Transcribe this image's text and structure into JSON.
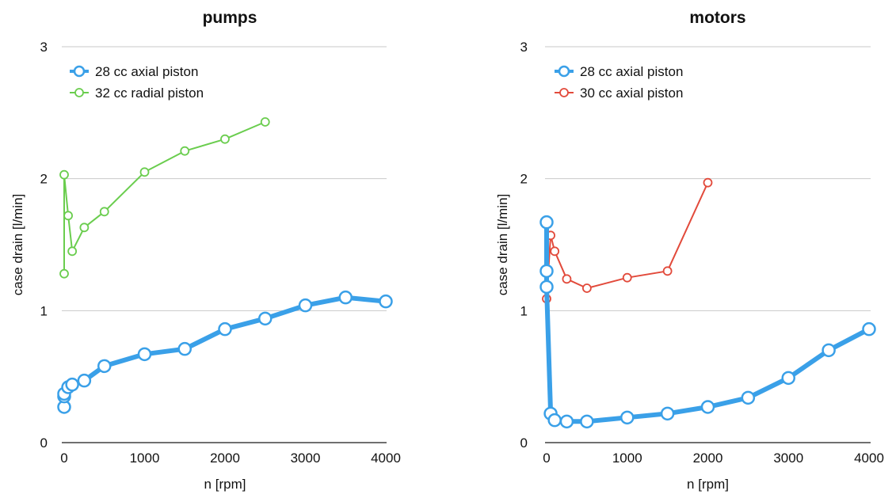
{
  "chart_data": [
    {
      "type": "line",
      "title": "pumps",
      "xlabel": "n [rpm]",
      "ylabel": "case drain [l/min]",
      "xlim": [
        0,
        4000
      ],
      "ylim": [
        0,
        3
      ],
      "x_ticks": [
        "0",
        "1000",
        "2000",
        "3000",
        "4000"
      ],
      "y_ticks": [
        "0",
        "1",
        "2",
        "3"
      ],
      "grid": "horizontal",
      "legend_position": "top-left",
      "series": [
        {
          "name": "28 cc axial piston",
          "color": "#3aa0e8",
          "style": "thick",
          "points": [
            [
              0,
              0.27
            ],
            [
              0,
              0.35
            ],
            [
              0,
              0.37
            ],
            [
              50,
              0.42
            ],
            [
              100,
              0.44
            ],
            [
              250,
              0.47
            ],
            [
              500,
              0.58
            ],
            [
              1000,
              0.67
            ],
            [
              1500,
              0.71
            ],
            [
              2000,
              0.86
            ],
            [
              2500,
              0.94
            ],
            [
              3000,
              1.04
            ],
            [
              3500,
              1.1
            ],
            [
              4000,
              1.07
            ]
          ]
        },
        {
          "name": "32 cc radial piston",
          "color": "#6acd4e",
          "style": "thin",
          "points": [
            [
              0,
              1.28
            ],
            [
              0,
              2.03
            ],
            [
              50,
              1.72
            ],
            [
              100,
              1.45
            ],
            [
              250,
              1.63
            ],
            [
              500,
              1.75
            ],
            [
              1000,
              2.05
            ],
            [
              1500,
              2.21
            ],
            [
              2000,
              2.3
            ],
            [
              2500,
              2.43
            ]
          ]
        }
      ]
    },
    {
      "type": "line",
      "title": "motors",
      "xlabel": "n [rpm]",
      "ylabel": "case drain [l/min]",
      "xlim": [
        0,
        4000
      ],
      "ylim": [
        0,
        3
      ],
      "x_ticks": [
        "0",
        "1000",
        "2000",
        "3000",
        "4000"
      ],
      "y_ticks": [
        "0",
        "1",
        "2",
        "3"
      ],
      "grid": "horizontal",
      "legend_position": "top-left",
      "series": [
        {
          "name": "28 cc axial piston",
          "color": "#3aa0e8",
          "style": "thick",
          "points": [
            [
              0,
              1.67
            ],
            [
              0,
              1.3
            ],
            [
              0,
              1.18
            ],
            [
              50,
              0.22
            ],
            [
              100,
              0.17
            ],
            [
              250,
              0.16
            ],
            [
              500,
              0.16
            ],
            [
              1000,
              0.19
            ],
            [
              1500,
              0.22
            ],
            [
              2000,
              0.27
            ],
            [
              2500,
              0.34
            ],
            [
              3000,
              0.49
            ],
            [
              3500,
              0.7
            ],
            [
              4000,
              0.86
            ]
          ]
        },
        {
          "name": "30 cc axial piston",
          "color": "#e24a3b",
          "style": "thin",
          "points": [
            [
              0,
              1.09
            ],
            [
              50,
              1.57
            ],
            [
              100,
              1.45
            ],
            [
              250,
              1.24
            ],
            [
              500,
              1.17
            ],
            [
              1000,
              1.25
            ],
            [
              1500,
              1.3
            ],
            [
              2000,
              1.97
            ]
          ]
        }
      ]
    }
  ]
}
